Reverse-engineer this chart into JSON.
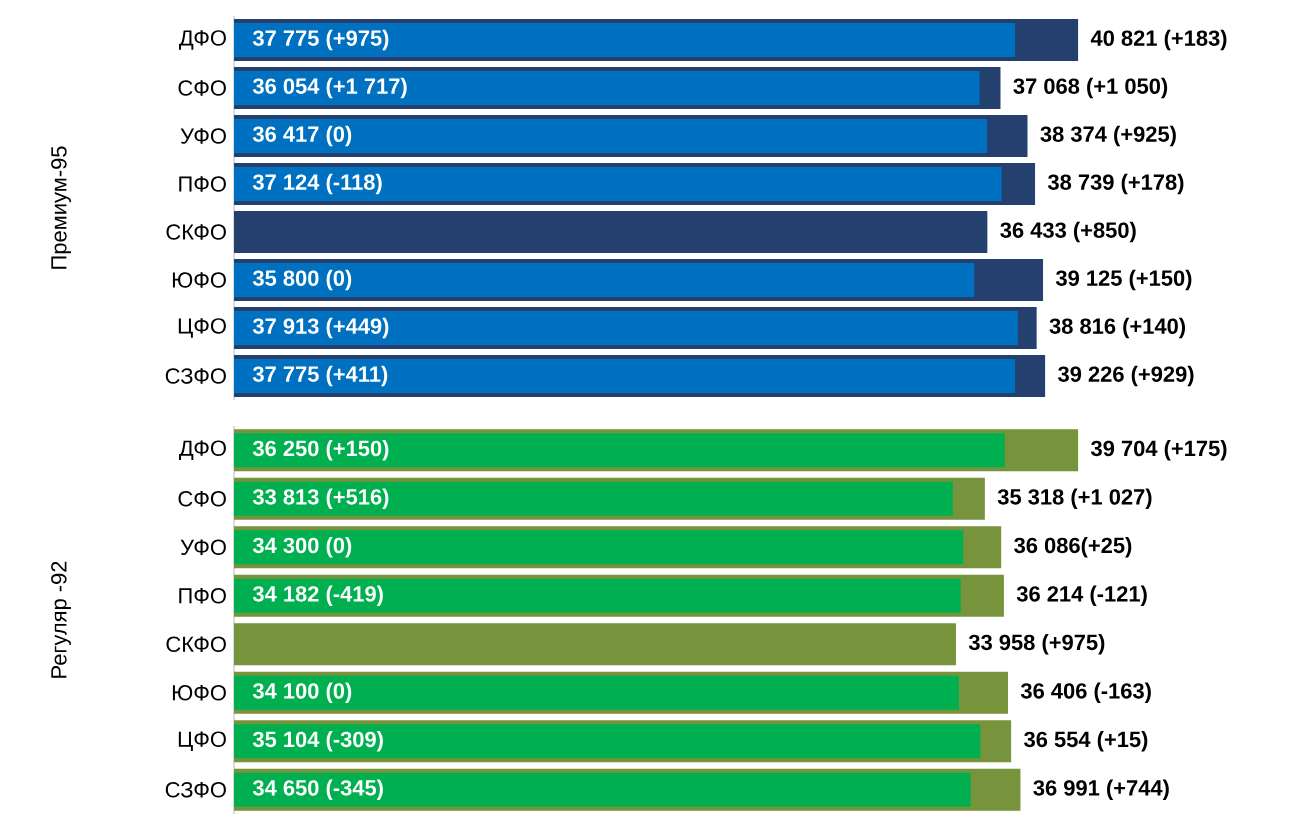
{
  "chart_data": [
    {
      "type": "bar",
      "orientation": "horizontal",
      "ylabel": "Премиум-95",
      "tick_labels": "y",
      "categories": [
        "ДФО",
        "СФО",
        "УФО",
        "ПФО",
        "СКФО",
        "ЮФО",
        "ЦФО",
        "СЗФО"
      ],
      "series": [
        {
          "color": "#23406f",
          "values": [
            40821,
            37068,
            38374,
            38739,
            36433,
            39125,
            38816,
            39226
          ],
          "value_labels": [
            "40 821 (+183)",
            "37 068 (+1 050)",
            "38 374 (+925)",
            "38 739 (+178)",
            "36 433 (+850)",
            "39 125 (+150)",
            "38 816 (+140)",
            "39 226 (+929)"
          ]
        },
        {
          "color": "#0070c0",
          "values": [
            37775,
            36054,
            36417,
            37124,
            null,
            35800,
            37913,
            37775
          ],
          "value_labels": [
            "37 775 (+975)",
            "36 054 (+1 717)",
            "36 417 (0)",
            "37 124 (-118)",
            null,
            "35 800 (0)",
            "37 913 (+449)",
            "37 775 (+411)"
          ]
        }
      ]
    },
    {
      "type": "bar",
      "orientation": "horizontal",
      "ylabel": "Регуляр -92",
      "tick_labels": "y",
      "categories": [
        "ДФО",
        "СФО",
        "УФО",
        "ПФО",
        "СКФО",
        "ЮФО",
        "ЦФО",
        "СЗФО"
      ],
      "series": [
        {
          "color": "#77933c",
          "values": [
            39704,
            35318,
            36086,
            36214,
            33958,
            36406,
            36554,
            36991
          ],
          "value_labels": [
            "39 704 (+175)",
            "35 318 (+1 027)",
            "36 086(+25)",
            "36 214 (-121)",
            "33 958 (+975)",
            "36 406 (-163)",
            "36 554 (+15)",
            "36 991 (+744)"
          ]
        },
        {
          "color": "#00b050",
          "values": [
            36250,
            33813,
            34300,
            34182,
            null,
            34100,
            35104,
            34650
          ],
          "value_labels": [
            "36 250 (+150)",
            "33 813 (+516)",
            "34 300 (0)",
            "34 182 (-419)",
            null,
            "34 100 (0)",
            "35 104 (-309)",
            "34 650 (-345)"
          ]
        }
      ]
    }
  ]
}
